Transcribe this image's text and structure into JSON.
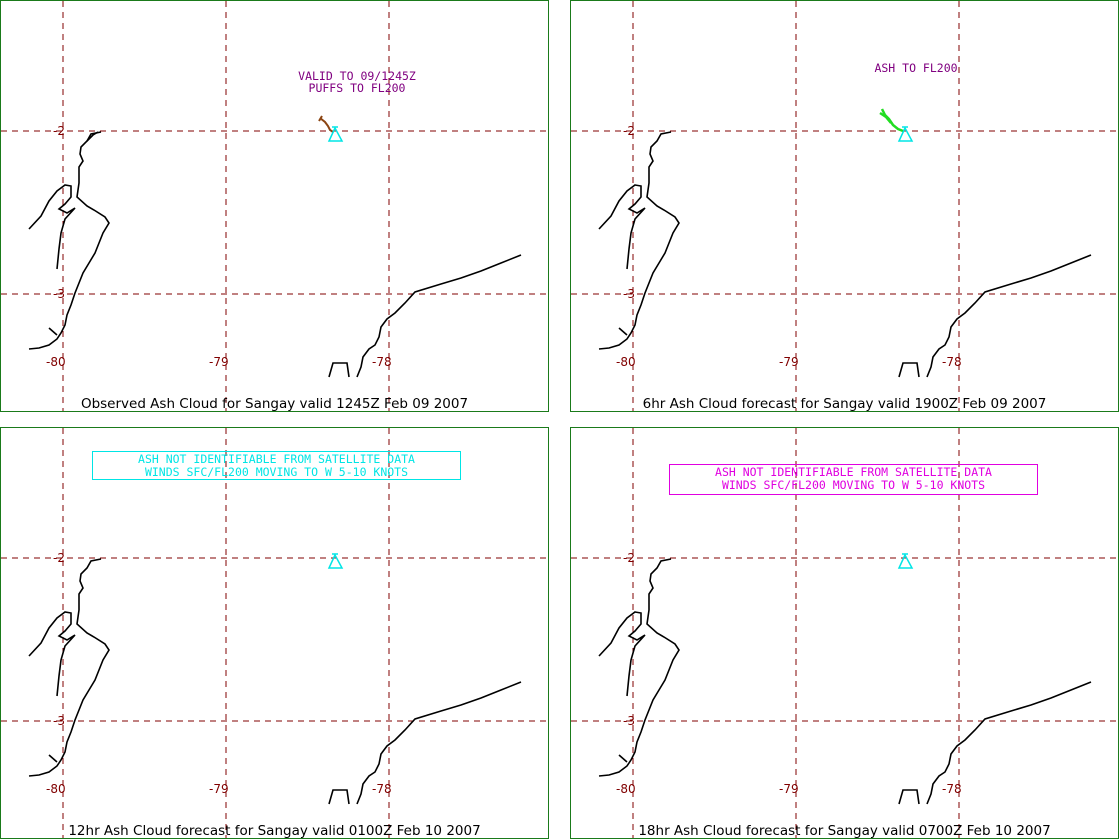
{
  "colors": {
    "border": "#1a7a1a",
    "grid": "#800000",
    "coast": "#000000",
    "volcano": "#00e5e5",
    "note_obs": "#800080",
    "ash_obs": "#8b4513",
    "ash_fc": "#22dd22",
    "box12": "#00e5e5",
    "box18": "#e000e0"
  },
  "icons": {
    "volcano": "triangle-volcano-icon"
  },
  "panels": [
    {
      "caption": "Observed Ash Cloud for Sangay valid 1245Z Feb 09 2007",
      "lon_labels": [
        "-80",
        "-79",
        "-78"
      ],
      "lat_labels": [
        "-2",
        "-3"
      ],
      "notes": [
        "VALID TO 09/1245Z",
        "PUFFS TO FL200"
      ]
    },
    {
      "caption": "6hr Ash Cloud forecast for Sangay valid 1900Z Feb 09 2007",
      "lon_labels": [
        "-80",
        "-79",
        "-78"
      ],
      "lat_labels": [
        "-2",
        "-3"
      ],
      "notes": [
        "ASH TO FL200"
      ]
    },
    {
      "caption": "12hr Ash Cloud forecast for Sangay valid 0100Z Feb 10 2007",
      "lon_labels": [
        "-80",
        "-79",
        "-78"
      ],
      "lat_labels": [
        "-2",
        "-3"
      ],
      "notes": [
        "ASH NOT IDENTIFIABLE FROM SATELLITE DATA",
        "WINDS SFC/FL200 MOVING TO W 5-10 KNOTS"
      ]
    },
    {
      "caption": "18hr Ash Cloud forecast for Sangay valid 0700Z Feb 10 2007",
      "lon_labels": [
        "-80",
        "-79",
        "-78"
      ],
      "lat_labels": [
        "-2",
        "-3"
      ],
      "notes": [
        "ASH NOT IDENTIFIABLE FROM SATELLITE DATA",
        "WINDS SFC/FL200 MOVING TO W 5-10 KNOTS"
      ]
    }
  ]
}
